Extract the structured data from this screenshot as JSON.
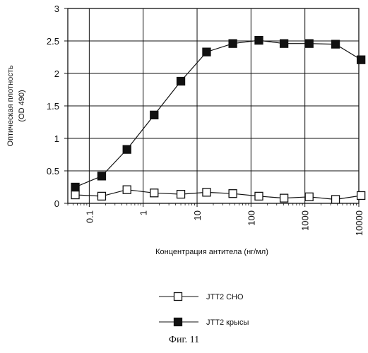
{
  "chart_data": {
    "type": "line",
    "xscale": "log",
    "xlabel": "Концентрация антитела (нг/мл)",
    "ylabel": "Оптическая плотность",
    "ylabel_unit": "(OD 490)",
    "xlim": [
      0.04,
      10000
    ],
    "ylim": [
      0,
      3
    ],
    "grid": true,
    "legend_position": "bottom-center",
    "x_ticks": [
      {
        "value": 0.1,
        "label": "0.1"
      },
      {
        "value": 1,
        "label": "1"
      },
      {
        "value": 10,
        "label": "10"
      },
      {
        "value": 100,
        "label": "100"
      },
      {
        "value": 1000,
        "label": "1000"
      },
      {
        "value": 10000,
        "label": "10000"
      }
    ],
    "y_ticks": [
      {
        "value": 0,
        "label": "0"
      },
      {
        "value": 0.5,
        "label": "0.5"
      },
      {
        "value": 1,
        "label": "1"
      },
      {
        "value": 1.5,
        "label": "1.5"
      },
      {
        "value": 2,
        "label": "2"
      },
      {
        "value": 2.5,
        "label": "2.5"
      },
      {
        "value": 3,
        "label": "3"
      }
    ],
    "series": [
      {
        "name": "JTT2 CHO",
        "marker": "open-square",
        "color": "#111111",
        "x": [
          0.055,
          0.17,
          0.5,
          1.6,
          5,
          15,
          46,
          140,
          410,
          1200,
          3700,
          11000
        ],
        "y": [
          0.13,
          0.11,
          0.21,
          0.16,
          0.14,
          0.17,
          0.15,
          0.11,
          0.08,
          0.1,
          0.06,
          0.12
        ]
      },
      {
        "name": "JTT2 крысы",
        "marker": "filled-square",
        "color": "#111111",
        "x": [
          0.055,
          0.17,
          0.5,
          1.6,
          5,
          15,
          46,
          140,
          410,
          1200,
          3700,
          11000
        ],
        "y": [
          0.25,
          0.42,
          0.83,
          1.36,
          1.88,
          2.33,
          2.46,
          2.51,
          2.46,
          2.46,
          2.45,
          2.21
        ]
      }
    ]
  },
  "caption": "Фиг. 11"
}
